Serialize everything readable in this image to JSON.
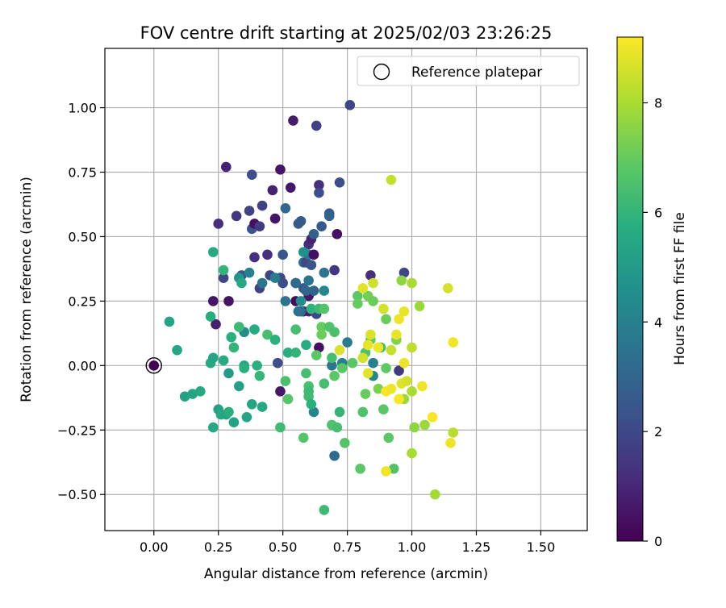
{
  "chart_data": {
    "type": "scatter",
    "title": "FOV centre drift starting at 2025/02/03 23:26:25",
    "xlabel": "Angular distance from reference (arcmin)",
    "ylabel": "Rotation from reference (arcmin)",
    "xlim": [
      -0.19,
      1.68
    ],
    "ylim": [
      -0.64,
      1.23
    ],
    "xticks": [
      0.0,
      0.25,
      0.5,
      0.75,
      1.0,
      1.25,
      1.5
    ],
    "xtick_labels": [
      "0.00",
      "0.25",
      "0.50",
      "0.75",
      "1.00",
      "1.25",
      "1.50"
    ],
    "yticks": [
      -0.5,
      -0.25,
      0.0,
      0.25,
      0.5,
      0.75,
      1.0
    ],
    "ytick_labels": [
      "−0.50",
      "−0.25",
      "0.00",
      "0.25",
      "0.50",
      "0.75",
      "1.00"
    ],
    "grid": true,
    "legend": {
      "placement": "top-right",
      "entries": [
        "Reference platepar"
      ]
    },
    "reference_point": {
      "x": 0.0,
      "y": 0.0
    },
    "colorbar": {
      "label": "Hours from first FF file",
      "colormap": "viridis",
      "range": [
        0,
        9.2
      ],
      "ticks": [
        0,
        2,
        4,
        6,
        8
      ]
    },
    "series": [
      {
        "points": [
          {
            "x": 0.0,
            "y": 0.0,
            "h": 0.0
          },
          {
            "x": 0.23,
            "y": 0.25,
            "h": 0.5
          },
          {
            "x": 0.24,
            "y": 0.16,
            "h": 0.8
          },
          {
            "x": 0.28,
            "y": 0.77,
            "h": 0.9
          },
          {
            "x": 0.29,
            "y": 0.25,
            "h": 0.5
          },
          {
            "x": 0.25,
            "y": 0.55,
            "h": 1.2
          },
          {
            "x": 0.27,
            "y": 0.34,
            "h": 2.0
          },
          {
            "x": 0.32,
            "y": 0.58,
            "h": 1.5
          },
          {
            "x": 0.34,
            "y": 0.35,
            "h": 2.3
          },
          {
            "x": 0.37,
            "y": 0.6,
            "h": 1.8
          },
          {
            "x": 0.38,
            "y": 0.74,
            "h": 2.2
          },
          {
            "x": 0.38,
            "y": 0.53,
            "h": 2.4
          },
          {
            "x": 0.39,
            "y": 0.55,
            "h": 0.4
          },
          {
            "x": 0.39,
            "y": 0.42,
            "h": 1.2
          },
          {
            "x": 0.41,
            "y": 0.54,
            "h": 1.6
          },
          {
            "x": 0.42,
            "y": 0.62,
            "h": 1.8
          },
          {
            "x": 0.41,
            "y": 0.3,
            "h": 1.8
          },
          {
            "x": 0.44,
            "y": 0.43,
            "h": 1.2
          },
          {
            "x": 0.46,
            "y": 0.68,
            "h": 0.9
          },
          {
            "x": 0.47,
            "y": 0.57,
            "h": 0.5
          },
          {
            "x": 0.45,
            "y": 0.35,
            "h": 2.0
          },
          {
            "x": 0.49,
            "y": 0.34,
            "h": 2.0
          },
          {
            "x": 0.49,
            "y": 0.76,
            "h": 0.5
          },
          {
            "x": 0.5,
            "y": 0.43,
            "h": 2.4
          },
          {
            "x": 0.51,
            "y": 0.61,
            "h": 3.1
          },
          {
            "x": 0.5,
            "y": 0.32,
            "h": 2.2
          },
          {
            "x": 0.53,
            "y": 0.69,
            "h": 0.6
          },
          {
            "x": 0.54,
            "y": 0.95,
            "h": 0.7
          },
          {
            "x": 0.55,
            "y": 0.32,
            "h": 1.5
          },
          {
            "x": 0.55,
            "y": 0.25,
            "h": 0.3
          },
          {
            "x": 0.56,
            "y": 0.55,
            "h": 2.6
          },
          {
            "x": 0.57,
            "y": 0.56,
            "h": 2.6
          },
          {
            "x": 0.58,
            "y": 0.4,
            "h": 3.2
          },
          {
            "x": 0.59,
            "y": 0.4,
            "h": 1.9
          },
          {
            "x": 0.58,
            "y": 0.3,
            "h": 2.6
          },
          {
            "x": 0.6,
            "y": 0.47,
            "h": 1.2
          },
          {
            "x": 0.61,
            "y": 0.49,
            "h": 0.9
          },
          {
            "x": 0.6,
            "y": 0.43,
            "h": 3.6
          },
          {
            "x": 0.61,
            "y": 0.39,
            "h": 2.4
          },
          {
            "x": 0.62,
            "y": 0.51,
            "h": 2.8
          },
          {
            "x": 0.62,
            "y": 0.43,
            "h": 0.4
          },
          {
            "x": 0.63,
            "y": 0.93,
            "h": 1.8
          },
          {
            "x": 0.64,
            "y": 0.7,
            "h": 1.2
          },
          {
            "x": 0.64,
            "y": 0.67,
            "h": 2.2
          },
          {
            "x": 0.65,
            "y": 0.54,
            "h": 2.6
          },
          {
            "x": 0.66,
            "y": 0.36,
            "h": 3.6
          },
          {
            "x": 0.68,
            "y": 0.59,
            "h": 2.6
          },
          {
            "x": 0.68,
            "y": 0.58,
            "h": 3.0
          },
          {
            "x": 0.7,
            "y": 0.37,
            "h": 1.5
          },
          {
            "x": 0.71,
            "y": 0.51,
            "h": 0.4
          },
          {
            "x": 0.72,
            "y": 0.71,
            "h": 2.2
          },
          {
            "x": 0.76,
            "y": 1.01,
            "h": 1.9
          },
          {
            "x": 0.6,
            "y": 0.21,
            "h": 0.9
          },
          {
            "x": 0.58,
            "y": 0.21,
            "h": 0.6
          },
          {
            "x": 0.57,
            "y": 0.21,
            "h": 3.2
          },
          {
            "x": 0.6,
            "y": 0.27,
            "h": 0.6
          },
          {
            "x": 0.63,
            "y": 0.2,
            "h": 2.0
          },
          {
            "x": 0.64,
            "y": 0.07,
            "h": 0.4
          },
          {
            "x": 0.48,
            "y": 0.01,
            "h": 2.2
          },
          {
            "x": 0.49,
            "y": -0.1,
            "h": 0.6
          },
          {
            "x": 0.84,
            "y": 0.35,
            "h": 1.2
          },
          {
            "x": 0.97,
            "y": 0.36,
            "h": 2.0
          },
          {
            "x": 0.95,
            "y": -0.02,
            "h": 1.6
          },
          {
            "x": 0.51,
            "y": 0.25,
            "h": 3.5
          },
          {
            "x": 0.57,
            "y": 0.25,
            "h": 4.5
          },
          {
            "x": 0.56,
            "y": 0.21,
            "h": 3.4
          },
          {
            "x": 0.55,
            "y": 0.32,
            "h": 3.2
          },
          {
            "x": 0.59,
            "y": 0.29,
            "h": 3.0
          },
          {
            "x": 0.6,
            "y": 0.33,
            "h": 3.6
          },
          {
            "x": 0.62,
            "y": 0.29,
            "h": 3.0
          },
          {
            "x": 0.66,
            "y": 0.29,
            "h": 4.2
          },
          {
            "x": 0.75,
            "y": 0.09,
            "h": 3.8
          },
          {
            "x": 0.85,
            "y": -0.04,
            "h": 4.2
          },
          {
            "x": 0.85,
            "y": 0.01,
            "h": 4.0
          },
          {
            "x": 0.7,
            "y": -0.35,
            "h": 3.2
          },
          {
            "x": 0.62,
            "y": -0.18,
            "h": 4.1
          },
          {
            "x": 0.73,
            "y": 0.01,
            "h": 4.0
          },
          {
            "x": 0.69,
            "y": 0.0,
            "h": 3.6
          },
          {
            "x": 0.58,
            "y": 0.44,
            "h": 4.6
          },
          {
            "x": 0.37,
            "y": 0.36,
            "h": 4.0
          },
          {
            "x": 0.33,
            "y": 0.34,
            "h": 4.8
          },
          {
            "x": 0.35,
            "y": 0.13,
            "h": 4.4
          },
          {
            "x": 0.42,
            "y": 0.32,
            "h": 3.5
          },
          {
            "x": 0.47,
            "y": 0.34,
            "h": 3.8
          },
          {
            "x": 0.06,
            "y": 0.17,
            "h": 5.3
          },
          {
            "x": 0.09,
            "y": 0.06,
            "h": 5.4
          },
          {
            "x": 0.12,
            "y": -0.12,
            "h": 5.2
          },
          {
            "x": 0.15,
            "y": -0.11,
            "h": 5.3
          },
          {
            "x": 0.18,
            "y": -0.1,
            "h": 5.5
          },
          {
            "x": 0.22,
            "y": 0.19,
            "h": 5.7
          },
          {
            "x": 0.22,
            "y": 0.01,
            "h": 5.5
          },
          {
            "x": 0.23,
            "y": 0.03,
            "h": 5.4
          },
          {
            "x": 0.23,
            "y": -0.24,
            "h": 5.5
          },
          {
            "x": 0.23,
            "y": 0.44,
            "h": 5.6
          },
          {
            "x": 0.25,
            "y": -0.17,
            "h": 5.2
          },
          {
            "x": 0.26,
            "y": -0.19,
            "h": 5.5
          },
          {
            "x": 0.27,
            "y": 0.37,
            "h": 6.0
          },
          {
            "x": 0.27,
            "y": 0.02,
            "h": 5.6
          },
          {
            "x": 0.28,
            "y": -0.19,
            "h": 5.3
          },
          {
            "x": 0.29,
            "y": -0.18,
            "h": 5.7
          },
          {
            "x": 0.29,
            "y": -0.03,
            "h": 5.0
          },
          {
            "x": 0.3,
            "y": 0.11,
            "h": 5.8
          },
          {
            "x": 0.31,
            "y": 0.07,
            "h": 6.0
          },
          {
            "x": 0.31,
            "y": -0.22,
            "h": 5.3
          },
          {
            "x": 0.33,
            "y": 0.15,
            "h": 6.2
          },
          {
            "x": 0.33,
            "y": -0.08,
            "h": 5.2
          },
          {
            "x": 0.34,
            "y": 0.32,
            "h": 5.5
          },
          {
            "x": 0.35,
            "y": 0.0,
            "h": 5.4
          },
          {
            "x": 0.35,
            "y": -0.01,
            "h": 5.8
          },
          {
            "x": 0.36,
            "y": -0.2,
            "h": 5.4
          },
          {
            "x": 0.38,
            "y": -0.15,
            "h": 5.4
          },
          {
            "x": 0.39,
            "y": 0.14,
            "h": 5.6
          },
          {
            "x": 0.4,
            "y": 0.0,
            "h": 5.8
          },
          {
            "x": 0.41,
            "y": -0.04,
            "h": 6.1
          },
          {
            "x": 0.42,
            "y": -0.16,
            "h": 5.5
          },
          {
            "x": 0.44,
            "y": 0.12,
            "h": 6.4
          },
          {
            "x": 0.47,
            "y": 0.1,
            "h": 5.8
          },
          {
            "x": 0.49,
            "y": -0.24,
            "h": 6.3
          },
          {
            "x": 0.51,
            "y": -0.06,
            "h": 6.5
          },
          {
            "x": 0.52,
            "y": -0.13,
            "h": 6.7
          },
          {
            "x": 0.52,
            "y": 0.05,
            "h": 5.7
          },
          {
            "x": 0.55,
            "y": 0.14,
            "h": 6.4
          },
          {
            "x": 0.55,
            "y": 0.05,
            "h": 6.0
          },
          {
            "x": 0.58,
            "y": -0.28,
            "h": 6.7
          },
          {
            "x": 0.59,
            "y": 0.08,
            "h": 5.7
          },
          {
            "x": 0.59,
            "y": -0.03,
            "h": 6.4
          },
          {
            "x": 0.6,
            "y": -0.08,
            "h": 6.5
          },
          {
            "x": 0.6,
            "y": -0.1,
            "h": 6.2
          },
          {
            "x": 0.6,
            "y": -0.12,
            "h": 6.3
          },
          {
            "x": 0.61,
            "y": 0.22,
            "h": 5.9
          },
          {
            "x": 0.61,
            "y": -0.15,
            "h": 5.8
          },
          {
            "x": 0.63,
            "y": 0.04,
            "h": 6.8
          },
          {
            "x": 0.64,
            "y": 0.22,
            "h": 6.2
          },
          {
            "x": 0.65,
            "y": 0.15,
            "h": 7.0
          },
          {
            "x": 0.65,
            "y": 0.12,
            "h": 7.1
          },
          {
            "x": 0.66,
            "y": -0.07,
            "h": 6.4
          },
          {
            "x": 0.66,
            "y": 0.22,
            "h": 6.7
          },
          {
            "x": 0.66,
            "y": -0.56,
            "h": 6.2
          },
          {
            "x": 0.68,
            "y": 0.15,
            "h": 6.6
          },
          {
            "x": 0.69,
            "y": 0.03,
            "h": 6.4
          },
          {
            "x": 0.69,
            "y": -0.23,
            "h": 6.6
          },
          {
            "x": 0.7,
            "y": -0.04,
            "h": 6.8
          },
          {
            "x": 0.7,
            "y": 0.13,
            "h": 6.5
          },
          {
            "x": 0.71,
            "y": -0.24,
            "h": 6.4
          },
          {
            "x": 0.72,
            "y": -0.18,
            "h": 6.0
          },
          {
            "x": 0.73,
            "y": -0.01,
            "h": 6.8
          },
          {
            "x": 0.74,
            "y": -0.3,
            "h": 6.7
          },
          {
            "x": 0.77,
            "y": 0.01,
            "h": 6.8
          },
          {
            "x": 0.79,
            "y": 0.27,
            "h": 6.8
          },
          {
            "x": 0.79,
            "y": 0.24,
            "h": 7.0
          },
          {
            "x": 0.8,
            "y": -0.4,
            "h": 6.8
          },
          {
            "x": 0.81,
            "y": -0.18,
            "h": 6.6
          },
          {
            "x": 0.82,
            "y": 0.05,
            "h": 6.6
          },
          {
            "x": 0.82,
            "y": -0.11,
            "h": 7.0
          },
          {
            "x": 0.83,
            "y": 0.27,
            "h": 7.2
          },
          {
            "x": 0.84,
            "y": 0.1,
            "h": 7.0
          },
          {
            "x": 0.85,
            "y": 0.25,
            "h": 7.1
          },
          {
            "x": 0.87,
            "y": -0.09,
            "h": 7.3
          },
          {
            "x": 0.88,
            "y": 0.07,
            "h": 6.4
          },
          {
            "x": 0.89,
            "y": -0.17,
            "h": 6.8
          },
          {
            "x": 0.9,
            "y": -0.01,
            "h": 6.9
          },
          {
            "x": 0.9,
            "y": 0.18,
            "h": 7.1
          },
          {
            "x": 0.91,
            "y": -0.28,
            "h": 6.8
          },
          {
            "x": 0.93,
            "y": -0.4,
            "h": 6.6
          },
          {
            "x": 0.94,
            "y": 0.1,
            "h": 7.4
          },
          {
            "x": 0.96,
            "y": 0.33,
            "h": 7.6
          },
          {
            "x": 0.97,
            "y": -0.13,
            "h": 7.8
          },
          {
            "x": 1.0,
            "y": -0.34,
            "h": 8.0
          },
          {
            "x": 1.0,
            "y": 0.32,
            "h": 8.0
          },
          {
            "x": 1.0,
            "y": 0.07,
            "h": 8.3
          },
          {
            "x": 1.01,
            "y": -0.24,
            "h": 7.6
          },
          {
            "x": 1.03,
            "y": 0.23,
            "h": 7.8
          },
          {
            "x": 1.05,
            "y": -0.23,
            "h": 7.8
          },
          {
            "x": 1.09,
            "y": -0.5,
            "h": 7.9
          },
          {
            "x": 1.0,
            "y": -0.1,
            "h": 8.0
          },
          {
            "x": 0.92,
            "y": 0.72,
            "h": 8.4
          },
          {
            "x": 0.81,
            "y": 0.3,
            "h": 8.8
          },
          {
            "x": 0.83,
            "y": 0.08,
            "h": 8.9
          },
          {
            "x": 0.84,
            "y": 0.12,
            "h": 8.7
          },
          {
            "x": 0.85,
            "y": 0.32,
            "h": 8.5
          },
          {
            "x": 0.87,
            "y": 0.07,
            "h": 9.0
          },
          {
            "x": 0.89,
            "y": 0.22,
            "h": 8.6
          },
          {
            "x": 0.9,
            "y": -0.41,
            "h": 9.0
          },
          {
            "x": 0.9,
            "y": -0.1,
            "h": 9.1
          },
          {
            "x": 0.92,
            "y": -0.09,
            "h": 9.0
          },
          {
            "x": 0.92,
            "y": 0.06,
            "h": 8.4
          },
          {
            "x": 0.94,
            "y": 0.12,
            "h": 8.9
          },
          {
            "x": 0.95,
            "y": 0.18,
            "h": 9.0
          },
          {
            "x": 0.95,
            "y": -0.13,
            "h": 9.1
          },
          {
            "x": 0.96,
            "y": -0.07,
            "h": 8.8
          },
          {
            "x": 0.97,
            "y": 0.21,
            "h": 8.9
          },
          {
            "x": 0.97,
            "y": 0.01,
            "h": 9.0
          },
          {
            "x": 0.98,
            "y": -0.06,
            "h": 8.6
          },
          {
            "x": 1.04,
            "y": -0.08,
            "h": 9.0
          },
          {
            "x": 1.08,
            "y": -0.2,
            "h": 9.1
          },
          {
            "x": 1.14,
            "y": 0.3,
            "h": 8.6
          },
          {
            "x": 1.15,
            "y": -0.3,
            "h": 9.0
          },
          {
            "x": 1.16,
            "y": 0.09,
            "h": 9.0
          },
          {
            "x": 1.16,
            "y": -0.26,
            "h": 8.2
          },
          {
            "x": 0.72,
            "y": 0.06,
            "h": 8.7
          },
          {
            "x": 0.81,
            "y": 0.03,
            "h": 8.6
          },
          {
            "x": 0.83,
            "y": -0.03,
            "h": 8.8
          }
        ]
      }
    ]
  }
}
